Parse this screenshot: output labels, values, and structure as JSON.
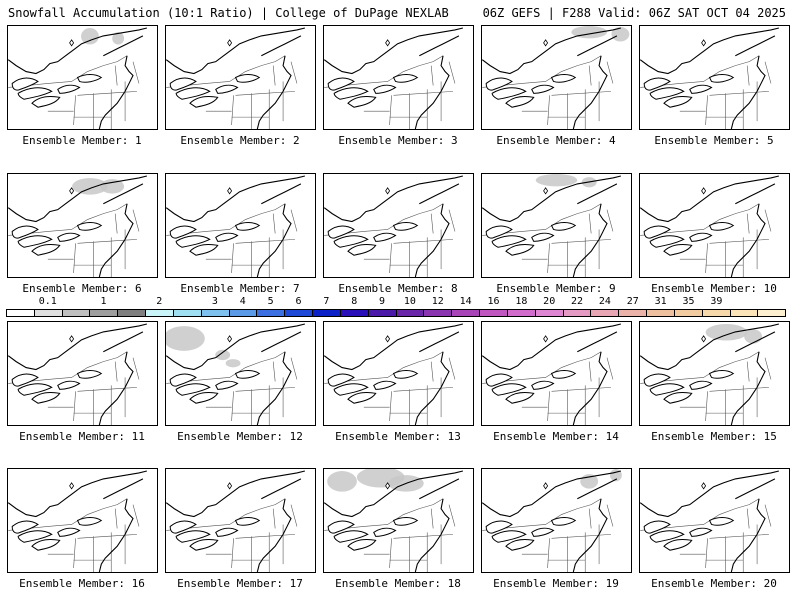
{
  "header": {
    "title_left": "Snowfall Accumulation (10:1 Ratio) | College of DuPage NEXLAB",
    "title_right": "06Z GEFS | F288 Valid: 06Z SAT OCT 04 2025"
  },
  "colorbar": {
    "labels": [
      "0.1",
      "1",
      "2",
      "3",
      "4",
      "5",
      "6",
      "7",
      "8",
      "9",
      "10",
      "12",
      "14",
      "16",
      "18",
      "20",
      "22",
      "24",
      "27",
      "31",
      "35",
      "39"
    ],
    "colors": [
      "#ffffff",
      "#e0e0e0",
      "#bfbfbf",
      "#9e9e9e",
      "#7f7f7f",
      "#c9f4f8",
      "#9fdff2",
      "#7ec0ee",
      "#5a9ae6",
      "#3c6fe0",
      "#1e49d6",
      "#0a22c8",
      "#2a10b8",
      "#4b1aa8",
      "#6a26a8",
      "#8a34b0",
      "#a843b8",
      "#c056c0",
      "#d26ccc",
      "#de86d2",
      "#e49ac2",
      "#e8a6b4",
      "#eab2a8",
      "#eec0a0",
      "#f2cca0",
      "#f6d8aa",
      "#fae4b8",
      "#fdf0d0"
    ]
  },
  "members": [
    {
      "label": "Ensemble Member: 1",
      "blobs": [
        [
          0.55,
          0.1,
          0.06,
          0.08
        ],
        [
          0.74,
          0.12,
          0.04,
          0.06
        ]
      ]
    },
    {
      "label": "Ensemble Member: 2",
      "blobs": []
    },
    {
      "label": "Ensemble Member: 3",
      "blobs": []
    },
    {
      "label": "Ensemble Member: 4",
      "blobs": [
        [
          0.72,
          0.06,
          0.12,
          0.06
        ],
        [
          0.93,
          0.08,
          0.06,
          0.07
        ]
      ]
    },
    {
      "label": "Ensemble Member: 5",
      "blobs": []
    },
    {
      "label": "Ensemble Member: 6",
      "blobs": [
        [
          0.55,
          0.12,
          0.12,
          0.08
        ],
        [
          0.7,
          0.12,
          0.08,
          0.07
        ]
      ]
    },
    {
      "label": "Ensemble Member: 7",
      "blobs": []
    },
    {
      "label": "Ensemble Member: 8",
      "blobs": []
    },
    {
      "label": "Ensemble Member: 9",
      "blobs": [
        [
          0.5,
          0.06,
          0.14,
          0.06
        ],
        [
          0.72,
          0.08,
          0.05,
          0.05
        ]
      ]
    },
    {
      "label": "Ensemble Member: 10",
      "blobs": []
    },
    {
      "label": "Ensemble Member: 11",
      "blobs": []
    },
    {
      "label": "Ensemble Member: 12",
      "blobs": [
        [
          0.12,
          0.16,
          0.14,
          0.12
        ],
        [
          0.38,
          0.32,
          0.05,
          0.05
        ],
        [
          0.45,
          0.4,
          0.05,
          0.04
        ]
      ]
    },
    {
      "label": "Ensemble Member: 13",
      "blobs": []
    },
    {
      "label": "Ensemble Member: 14",
      "blobs": []
    },
    {
      "label": "Ensemble Member: 15",
      "blobs": [
        [
          0.58,
          0.1,
          0.14,
          0.08
        ],
        [
          0.76,
          0.14,
          0.06,
          0.07
        ]
      ]
    },
    {
      "label": "Ensemble Member: 16",
      "blobs": []
    },
    {
      "label": "Ensemble Member: 17",
      "blobs": []
    },
    {
      "label": "Ensemble Member: 18",
      "blobs": [
        [
          0.12,
          0.12,
          0.1,
          0.1
        ],
        [
          0.38,
          0.08,
          0.16,
          0.1
        ],
        [
          0.55,
          0.14,
          0.12,
          0.08
        ]
      ]
    },
    {
      "label": "Ensemble Member: 19",
      "blobs": [
        [
          0.72,
          0.12,
          0.06,
          0.07
        ],
        [
          0.9,
          0.06,
          0.04,
          0.06
        ]
      ]
    },
    {
      "label": "Ensemble Member: 20",
      "blobs": []
    }
  ]
}
